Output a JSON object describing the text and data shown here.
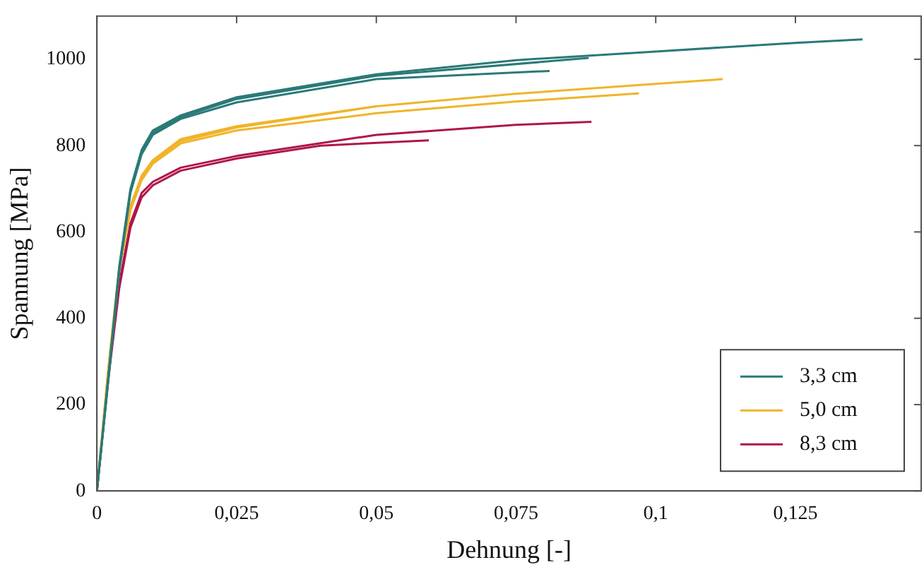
{
  "chart_data": {
    "type": "line",
    "xlabel": "Dehnung [-]",
    "ylabel": "Spannung [MPa]",
    "xlim": [
      0,
      0.1475
    ],
    "ylim": [
      0,
      1100
    ],
    "xticks": [
      {
        "value": 0,
        "label": "0"
      },
      {
        "value": 0.025,
        "label": "0,025"
      },
      {
        "value": 0.05,
        "label": "0,05"
      },
      {
        "value": 0.075,
        "label": "0,075"
      },
      {
        "value": 0.1,
        "label": "0,1"
      },
      {
        "value": 0.125,
        "label": "0,125"
      }
    ],
    "yticks": [
      0,
      200,
      400,
      600,
      800,
      1000
    ],
    "grid": false,
    "legend": "bottom right",
    "marker": "none",
    "line_style": "solid",
    "series": [
      {
        "name": "3,3 cm",
        "color": "#2a7a78",
        "x": [
          0,
          0.002,
          0.004,
          0.006,
          0.008,
          0.01,
          0.015,
          0.025,
          0.05,
          0.075,
          0.1,
          0.125,
          0.137
        ],
        "values": [
          0,
          260,
          520,
          700,
          790,
          835,
          870,
          912,
          965,
          998,
          1018,
          1038,
          1046
        ]
      },
      {
        "color": "#2a7a78",
        "x": [
          0,
          0.002,
          0.004,
          0.006,
          0.008,
          0.01,
          0.015,
          0.025,
          0.05,
          0.081
        ],
        "values": [
          0,
          250,
          510,
          690,
          780,
          825,
          862,
          900,
          954,
          973
        ]
      },
      {
        "color": "#2a7a78",
        "x": [
          0,
          0.002,
          0.004,
          0.006,
          0.008,
          0.01,
          0.015,
          0.025,
          0.05,
          0.088
        ],
        "values": [
          0,
          255,
          515,
          695,
          785,
          830,
          866,
          908,
          962,
          1003
        ]
      },
      {
        "name": "5,0 cm",
        "color": "#f0b429",
        "x": [
          0,
          0.002,
          0.004,
          0.006,
          0.008,
          0.01,
          0.015,
          0.025,
          0.05,
          0.075,
          0.1,
          0.112
        ],
        "values": [
          0,
          280,
          520,
          660,
          730,
          766,
          815,
          845,
          891,
          920,
          943,
          954
        ]
      },
      {
        "color": "#f0b429",
        "x": [
          0,
          0.002,
          0.004,
          0.006,
          0.008,
          0.01,
          0.015,
          0.025,
          0.05,
          0.075,
          0.097
        ],
        "values": [
          0,
          270,
          510,
          650,
          720,
          758,
          805,
          835,
          875,
          902,
          921
        ]
      },
      {
        "color": "#f0b429",
        "x": [
          0,
          0.002,
          0.004,
          0.006,
          0.008,
          0.01,
          0.015,
          0.025,
          0.05
        ],
        "values": [
          0,
          275,
          515,
          655,
          725,
          762,
          810,
          842,
          891
        ]
      },
      {
        "name": "8,3 cm",
        "color": "#b0164a",
        "x": [
          0,
          0.002,
          0.004,
          0.006,
          0.008,
          0.01,
          0.015,
          0.025,
          0.05,
          0.075,
          0.0885
        ],
        "values": [
          0,
          260,
          480,
          620,
          690,
          716,
          749,
          776,
          825,
          848,
          855
        ]
      },
      {
        "color": "#b0164a",
        "x": [
          0,
          0.002,
          0.004,
          0.006,
          0.008,
          0.01,
          0.015,
          0.025,
          0.04,
          0.0594
        ],
        "values": [
          0,
          255,
          470,
          610,
          680,
          708,
          742,
          770,
          800,
          812
        ]
      }
    ]
  }
}
